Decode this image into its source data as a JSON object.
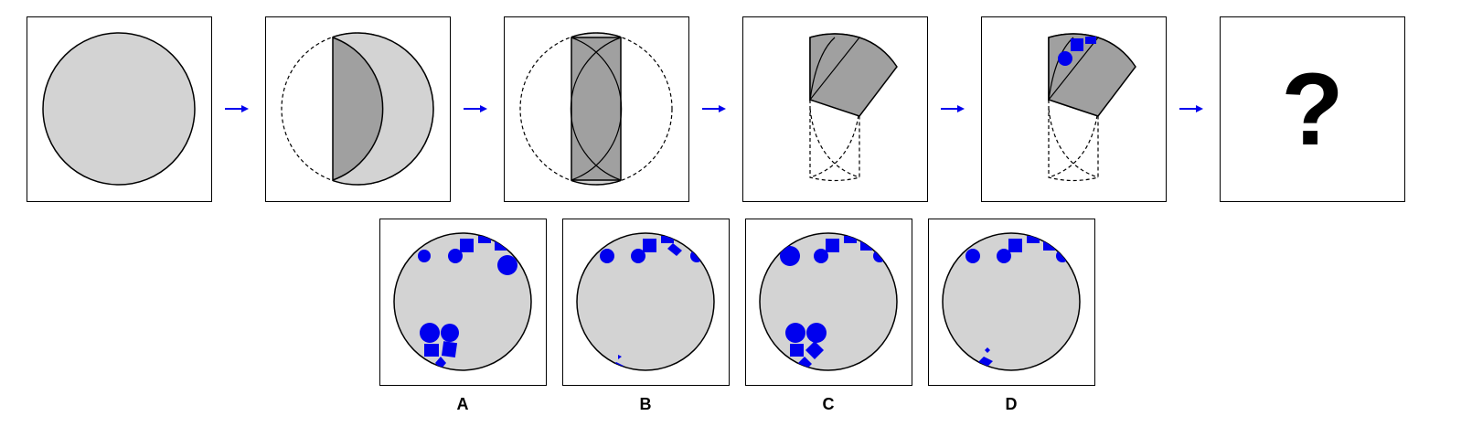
{
  "colors": {
    "paper": "#d3d3d3",
    "fold": "#a0a0a0",
    "mark": "#0000ee",
    "outline": "#000000"
  },
  "question": {
    "unknown_symbol": "?"
  },
  "options": [
    {
      "label": "A"
    },
    {
      "label": "B"
    },
    {
      "label": "C"
    },
    {
      "label": "D"
    }
  ]
}
